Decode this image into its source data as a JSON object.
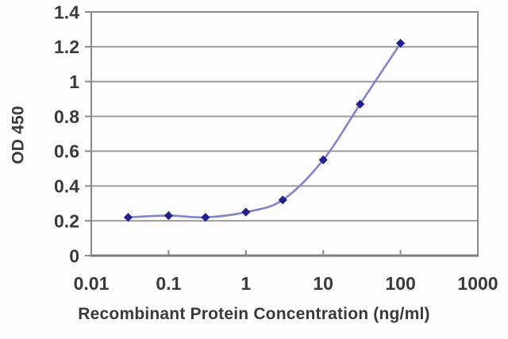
{
  "figure": {
    "background": "#fdfdfd"
  },
  "chart_data": {
    "type": "line",
    "title": "",
    "xlabel": "Recombinant Protein Concentration (ng/ml)",
    "ylabel": "OD 450",
    "xscale": "log",
    "yscale": "linear",
    "xlim": [
      0.01,
      1000
    ],
    "ylim": [
      0,
      1.4
    ],
    "x_ticks": [
      0.01,
      0.1,
      1,
      10,
      100,
      1000
    ],
    "x_tick_labels": [
      "0.01",
      "0.1",
      "1",
      "10",
      "100",
      "1000"
    ],
    "y_ticks": [
      0,
      0.2,
      0.4,
      0.6,
      0.8,
      1,
      1.2,
      1.4
    ],
    "y_tick_labels": [
      "0",
      "0.2",
      "0.4",
      "0.6",
      "0.8",
      "1",
      "1.2",
      "1.4"
    ],
    "grid": "horizontal",
    "legend": "none",
    "series": [
      {
        "name": "OD 450",
        "marker": "diamond",
        "x": [
          0.03,
          0.1,
          0.3,
          1,
          3,
          10,
          30,
          100
        ],
        "y": [
          0.22,
          0.23,
          0.22,
          0.25,
          0.32,
          0.55,
          0.87,
          1.22
        ]
      }
    ],
    "colors": {
      "line": "#8484C4",
      "marker": "#22228A",
      "grid": "#9c9c9c",
      "axis_border": "#8a8a8a",
      "axis_bottom": "#7f7f7f",
      "tick_text": "#3a3a3a"
    },
    "tick_font_size": 23
  }
}
